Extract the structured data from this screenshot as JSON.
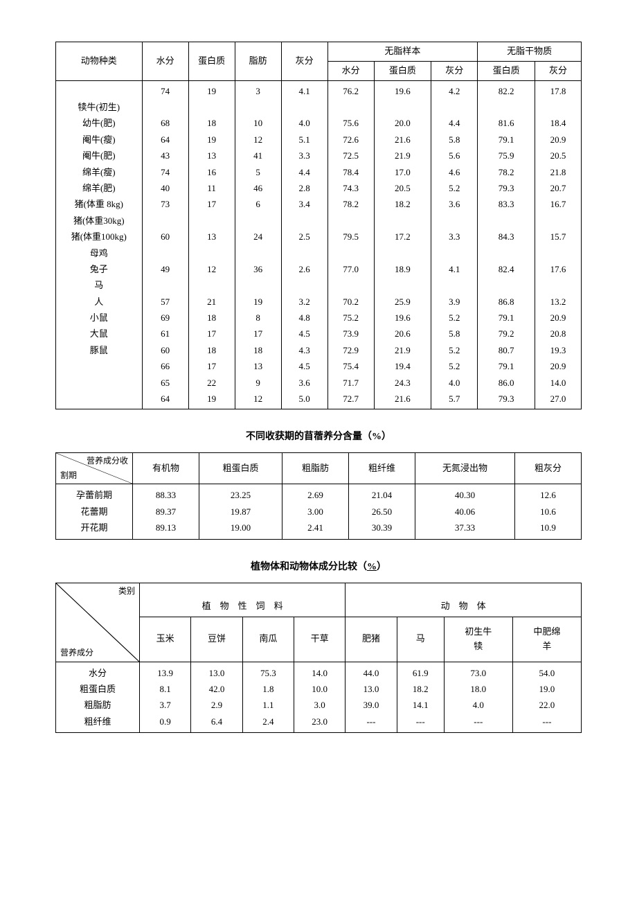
{
  "table1": {
    "headers": {
      "c0": "动物种类",
      "c1": "水分",
      "c2": "蛋白质",
      "c3": "脂肪",
      "c4": "灰分",
      "g1": "无脂样本",
      "g2": "无脂干物质",
      "s1": "水分",
      "s2": "蛋白质",
      "s3": "灰分",
      "s4": "蛋白质",
      "s5": "灰分"
    },
    "animals": [
      "犊牛(初生)",
      "幼牛(肥)",
      "阉牛(瘦)",
      "阉牛(肥)",
      "绵羊(瘦)",
      "绵羊(肥)",
      "猪(体重 8kg)",
      "猪(体重30kg)",
      "猪(体重100kg)",
      "母鸡",
      "兔子",
      "马",
      "人",
      "小鼠",
      "大鼠",
      "豚鼠",
      "",
      ""
    ],
    "rows": [
      [
        "74",
        "19",
        "3",
        "4.1",
        "76.2",
        "19.6",
        "4.2",
        "82.2",
        "17.8"
      ],
      [
        "",
        "",
        "",
        "",
        "",
        "",
        "",
        "",
        ""
      ],
      [
        "68",
        "18",
        "10",
        "4.0",
        "75.6",
        "20.0",
        "4.4",
        "81.6",
        "18.4"
      ],
      [
        "64",
        "19",
        "12",
        "5.1",
        "72.6",
        "21.6",
        "5.8",
        "79.1",
        "20.9"
      ],
      [
        "43",
        "13",
        "41",
        "3.3",
        "72.5",
        "21.9",
        "5.6",
        "75.9",
        "20.5"
      ],
      [
        "74",
        "16",
        "5",
        "4.4",
        "78.4",
        "17.0",
        "4.6",
        "78.2",
        "21.8"
      ],
      [
        "40",
        "11",
        "46",
        "2.8",
        "74.3",
        "20.5",
        "5.2",
        "79.3",
        "20.7"
      ],
      [
        "73",
        "17",
        "6",
        "3.4",
        "78.2",
        "18.2",
        "3.6",
        "83.3",
        "16.7"
      ],
      [
        "",
        "",
        "",
        "",
        "",
        "",
        "",
        "",
        ""
      ],
      [
        "60",
        "13",
        "24",
        "2.5",
        "79.5",
        "17.2",
        "3.3",
        "84.3",
        "15.7"
      ],
      [
        "",
        "",
        "",
        "",
        "",
        "",
        "",
        "",
        ""
      ],
      [
        "49",
        "12",
        "36",
        "2.6",
        "77.0",
        "18.9",
        "4.1",
        "82.4",
        "17.6"
      ],
      [
        "",
        "",
        "",
        "",
        "",
        "",
        "",
        "",
        ""
      ],
      [
        "57",
        "21",
        "19",
        "3.2",
        "70.2",
        "25.9",
        "3.9",
        "86.8",
        "13.2"
      ],
      [
        "69",
        "18",
        "8",
        "4.8",
        "75.2",
        "19.6",
        "5.2",
        "79.1",
        "20.9"
      ],
      [
        "61",
        "17",
        "17",
        "4.5",
        "73.9",
        "20.6",
        "5.8",
        "79.2",
        "20.8"
      ],
      [
        "60",
        "18",
        "18",
        "4.3",
        "72.9",
        "21.9",
        "5.2",
        "80.7",
        "19.3"
      ],
      [
        "66",
        "17",
        "13",
        "4.5",
        "75.4",
        "19.4",
        "5.2",
        "79.1",
        "20.9"
      ],
      [
        "65",
        "22",
        "9",
        "3.6",
        "71.7",
        "24.3",
        "4.0",
        "86.0",
        "14.0"
      ],
      [
        "64",
        "19",
        "12",
        "5.0",
        "72.7",
        "21.6",
        "5.7",
        "79.3",
        "27.0"
      ]
    ]
  },
  "title2": "不同收获期的苜蓿养分含量（%）",
  "table2": {
    "diag_top": "营养成分收",
    "diag_bot": "割期",
    "headers": [
      "有机物",
      "粗蛋白质",
      "粗脂肪",
      "粗纤维",
      "无氮浸出物",
      "粗灰分"
    ],
    "row_labels": [
      "孕蕾前期",
      "花蕾期",
      "开花期"
    ],
    "rows": [
      [
        "88.33",
        "23.25",
        "2.69",
        "21.04",
        "40.30",
        "12.6"
      ],
      [
        "89.37",
        "19.87",
        "3.00",
        "26.50",
        "40.06",
        "10.6"
      ],
      [
        "89.13",
        "19.00",
        "2.41",
        "30.39",
        "37.33",
        "10.9"
      ]
    ]
  },
  "title3_a": "植物体和动物体成分比较（",
  "title3_b": "%",
  "title3_c": "）",
  "table3": {
    "diag_top": "类别",
    "diag_bot": "营养成分",
    "group1": "植　物　性　饲　料",
    "group2": "动　物　体",
    "sub": [
      "玉米",
      "豆饼",
      "南瓜",
      "干草",
      "肥猪",
      "马",
      "初生牛犊",
      "中肥绵羊"
    ],
    "row_labels": [
      "水分",
      "粗蛋白质",
      "粗脂肪",
      "粗纤维"
    ],
    "rows": [
      [
        "13.9",
        "13.0",
        "75.3",
        "14.0",
        "44.0",
        "61.9",
        "73.0",
        "54.0"
      ],
      [
        "8.1",
        "42.0",
        "1.8",
        "10.0",
        "13.0",
        "18.2",
        "18.0",
        "19.0"
      ],
      [
        "3.7",
        "2.9",
        "1.1",
        "3.0",
        "39.0",
        "14.1",
        "4.0",
        "22.0"
      ],
      [
        "0.9",
        "6.4",
        "2.4",
        "23.0",
        "---",
        "---",
        "---",
        "---"
      ]
    ]
  }
}
